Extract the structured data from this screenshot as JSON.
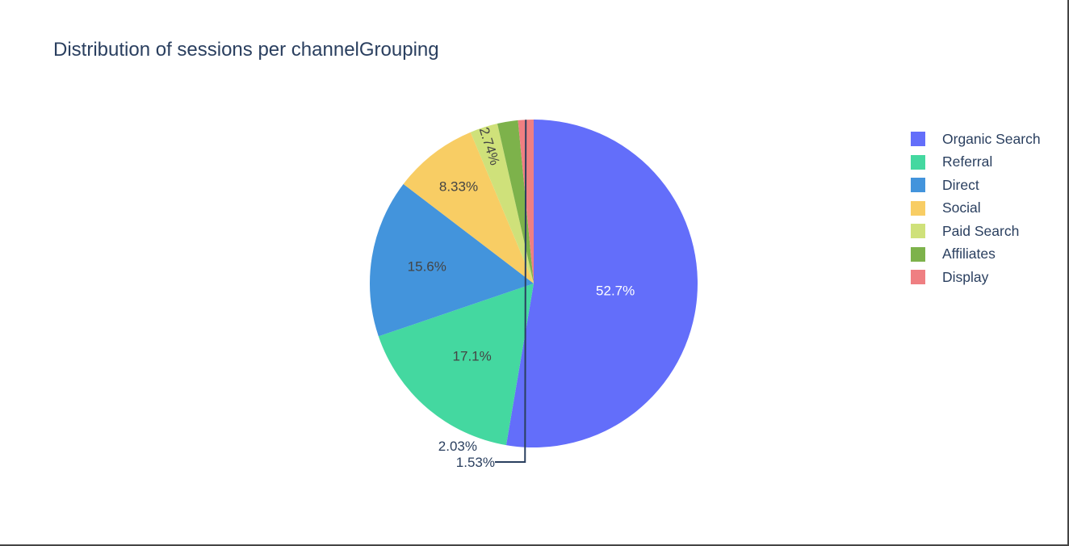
{
  "chart_data": {
    "type": "pie",
    "title": "Distribution of sessions per channelGrouping",
    "labels": [
      "Organic Search",
      "Referral",
      "Direct",
      "Social",
      "Paid Search",
      "Affiliates",
      "Display"
    ],
    "values": [
      52.7,
      17.1,
      15.6,
      8.33,
      2.74,
      2.03,
      1.53
    ],
    "text_labels": [
      "52.7%",
      "17.1%",
      "15.6%",
      "8.33%",
      "2.74%",
      "2.03%",
      "1.53%"
    ],
    "colors": [
      "#636efa",
      "#44d8a0",
      "#4394dc",
      "#f8cd64",
      "#cfe17a",
      "#7db24b",
      "#ef7f82"
    ],
    "legend_position": "top-right",
    "text_colors": [
      "#ffffff",
      "#444444",
      "#444444",
      "#444444",
      "#444444",
      "#2a3f5f",
      "#2a3f5f"
    ],
    "sort": "descending",
    "direction": "clockwise",
    "start": "top"
  }
}
